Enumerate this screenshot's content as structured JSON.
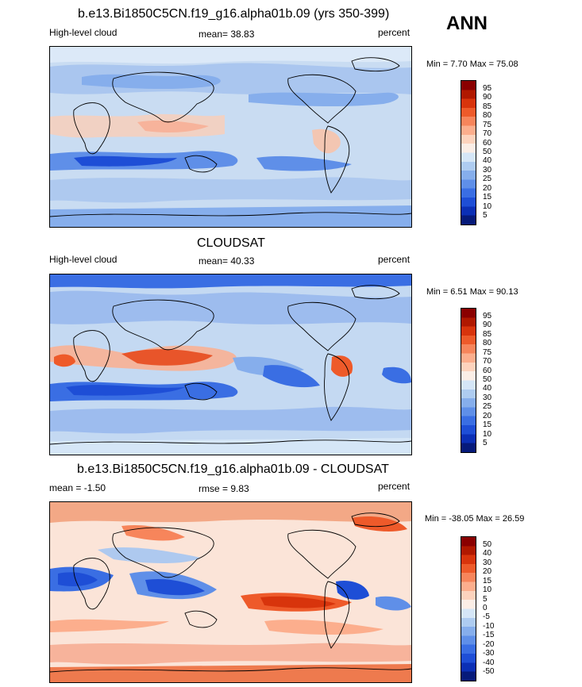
{
  "season": "ANN",
  "panels": [
    {
      "title": "b.e13.Bi1850C5CN.f19_g16.alpha01b.09 (yrs 350-399)",
      "left_label": "High-level cloud",
      "center_label": "mean=  38.83",
      "right_label": "percent",
      "minmax": "Min =  7.70 Max =  75.08",
      "legend_labels": [
        "95",
        "90",
        "85",
        "80",
        "75",
        "70",
        "60",
        "50",
        "40",
        "30",
        "25",
        "20",
        "15",
        "10",
        "5"
      ],
      "legend_colors": [
        "#8a0000",
        "#b01800",
        "#d8340c",
        "#ee5a2a",
        "#f7855b",
        "#fcae8d",
        "#fdd3bd",
        "#fbeee6",
        "#d5e6f7",
        "#aeccf1",
        "#86aeec",
        "#5f8fe8",
        "#3a6ee3",
        "#1e4ed6",
        "#0b2fb5",
        "#061a7a"
      ]
    },
    {
      "title": "CLOUDSAT",
      "left_label": "High-level cloud",
      "center_label": "mean=  40.33",
      "right_label": "percent",
      "minmax": "Min =  6.51 Max =  90.13",
      "legend_labels": [
        "95",
        "90",
        "85",
        "80",
        "75",
        "70",
        "60",
        "50",
        "40",
        "30",
        "25",
        "20",
        "15",
        "10",
        "5"
      ],
      "legend_colors": [
        "#8a0000",
        "#b01800",
        "#d8340c",
        "#ee5a2a",
        "#f7855b",
        "#fcae8d",
        "#fdd3bd",
        "#fbeee6",
        "#d5e6f7",
        "#aeccf1",
        "#86aeec",
        "#5f8fe8",
        "#3a6ee3",
        "#1e4ed6",
        "#0b2fb5",
        "#061a7a"
      ]
    },
    {
      "title": "b.e13.Bi1850C5CN.f19_g16.alpha01b.09 - CLOUDSAT",
      "left_label": "mean =  -1.50",
      "center_label": "rmse =   9.83",
      "right_label": "percent",
      "minmax": "Min = -38.05 Max =  26.59",
      "legend_labels": [
        "50",
        "40",
        "30",
        "20",
        "15",
        "10",
        "5",
        "0",
        "-5",
        "-10",
        "-15",
        "-20",
        "-30",
        "-40",
        "-50"
      ],
      "legend_colors": [
        "#8a0000",
        "#b01800",
        "#d8340c",
        "#ee5a2a",
        "#f7855b",
        "#fcae8d",
        "#fdd3bd",
        "#fbeee6",
        "#d5e6f7",
        "#aeccf1",
        "#86aeec",
        "#5f8fe8",
        "#3a6ee3",
        "#1e4ed6",
        "#0b2fb5",
        "#061a7a"
      ]
    }
  ]
}
